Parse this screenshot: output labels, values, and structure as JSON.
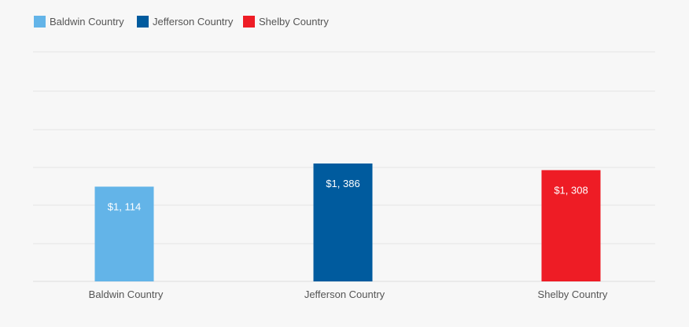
{
  "chart_data": {
    "type": "bar",
    "categories": [
      "Baldwin Country",
      "Jefferson Country",
      "Shelby Country"
    ],
    "values": [
      1114,
      1386,
      1308
    ],
    "value_labels": [
      "$1, 114",
      "$1, 386",
      "$1, 308"
    ],
    "colors": [
      "#63b4e8",
      "#005b9e",
      "#ee1c25"
    ],
    "legend": {
      "placement": "top-left",
      "entries": [
        "Baldwin Country",
        "Jefferson Country",
        "Shelby Country"
      ]
    },
    "grid": true,
    "title": "",
    "xlabel": "",
    "ylabel": ""
  }
}
